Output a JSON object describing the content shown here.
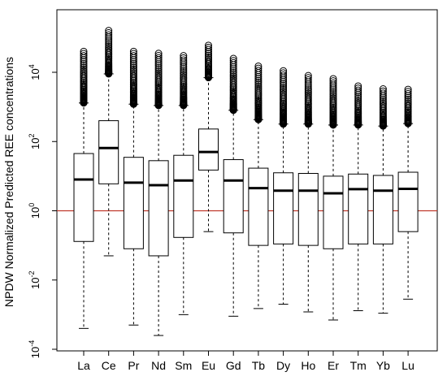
{
  "chart_data": {
    "type": "box",
    "title": "",
    "xlabel": "",
    "ylabel": "NPDW Normalized Predicted REE concentrations",
    "y_scale": "log10",
    "ylim": [
      0.0001,
      100000
    ],
    "y_ticks": [
      {
        "value": 0.0001,
        "base": "10",
        "exp": "-4"
      },
      {
        "value": 0.01,
        "base": "10",
        "exp": "-2"
      },
      {
        "value": 1,
        "base": "10",
        "exp": "0"
      },
      {
        "value": 100,
        "base": "10",
        "exp": "2"
      },
      {
        "value": 10000,
        "base": "10",
        "exp": "4"
      }
    ],
    "reference_line": {
      "value": 1,
      "color": "#c0392b"
    },
    "categories": [
      "La",
      "Ce",
      "Pr",
      "Nd",
      "Sm",
      "Eu",
      "Gd",
      "Tb",
      "Dy",
      "Ho",
      "Er",
      "Tm",
      "Yb",
      "Lu"
    ],
    "boxes": [
      {
        "name": "La",
        "whisker_low": 0.0004,
        "q1": 0.13,
        "median": 8,
        "q3": 45,
        "whisker_high": 1300,
        "outlier_max": 40000
      },
      {
        "name": "Ce",
        "whisker_low": 0.05,
        "q1": 6,
        "median": 65,
        "q3": 400,
        "whisker_high": 9000,
        "outlier_max": 160000
      },
      {
        "name": "Pr",
        "whisker_low": 0.0005,
        "q1": 0.08,
        "median": 6.5,
        "q3": 35,
        "whisker_high": 1200,
        "outlier_max": 40000
      },
      {
        "name": "Nd",
        "whisker_low": 0.00025,
        "q1": 0.05,
        "median": 5.5,
        "q3": 28,
        "whisker_high": 1100,
        "outlier_max": 35000
      },
      {
        "name": "Sm",
        "whisker_low": 0.001,
        "q1": 0.17,
        "median": 7.5,
        "q3": 40,
        "whisker_high": 1100,
        "outlier_max": 30000
      },
      {
        "name": "Eu",
        "whisker_low": 0.25,
        "q1": 15,
        "median": 50,
        "q3": 230,
        "whisker_high": 7000,
        "outlier_max": 60000
      },
      {
        "name": "Gd",
        "whisker_low": 0.0009,
        "q1": 0.23,
        "median": 7.5,
        "q3": 30,
        "whisker_high": 800,
        "outlier_max": 25000
      },
      {
        "name": "Tb",
        "whisker_low": 0.0015,
        "q1": 0.1,
        "median": 4.5,
        "q3": 17,
        "whisker_high": 430,
        "outlier_max": 15000
      },
      {
        "name": "Dy",
        "whisker_low": 0.002,
        "q1": 0.11,
        "median": 3.8,
        "q3": 12.5,
        "whisker_high": 320,
        "outlier_max": 11000
      },
      {
        "name": "Ho",
        "whisker_low": 0.0012,
        "q1": 0.1,
        "median": 3.8,
        "q3": 12,
        "whisker_high": 320,
        "outlier_max": 8000
      },
      {
        "name": "Er",
        "whisker_low": 0.0007,
        "q1": 0.08,
        "median": 3.2,
        "q3": 10,
        "whisker_high": 300,
        "outlier_max": 6500
      },
      {
        "name": "Tm",
        "whisker_low": 0.0013,
        "q1": 0.11,
        "median": 4.2,
        "q3": 11.5,
        "whisker_high": 300,
        "outlier_max": 4000
      },
      {
        "name": "Yb",
        "whisker_low": 0.0011,
        "q1": 0.11,
        "median": 3.8,
        "q3": 10.5,
        "whisker_high": 280,
        "outlier_max": 3300
      },
      {
        "name": "Lu",
        "whisker_low": 0.0028,
        "q1": 0.25,
        "median": 4.3,
        "q3": 13,
        "whisker_high": 330,
        "outlier_max": 3200
      }
    ],
    "grid": false,
    "legend": "none"
  }
}
